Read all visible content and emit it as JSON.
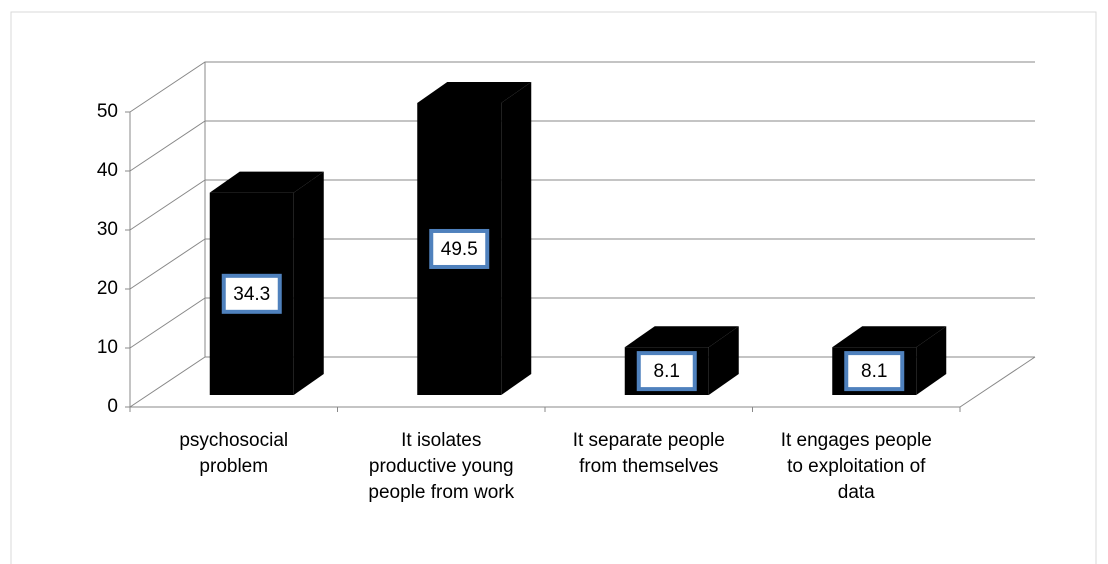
{
  "chart_data": {
    "type": "bar3d",
    "categories": [
      "psychosocial problem",
      "It isolates productive young people from work",
      "It separate people from themselves",
      "It engages people to exploitation of data"
    ],
    "values": [
      34.3,
      49.5,
      8.1,
      8.1
    ],
    "color": "#000000",
    "label_border_color": "#4f81bd",
    "ylim": [
      0,
      50
    ],
    "yticks": [
      0,
      10,
      20,
      30,
      40,
      50
    ],
    "grid": true
  }
}
